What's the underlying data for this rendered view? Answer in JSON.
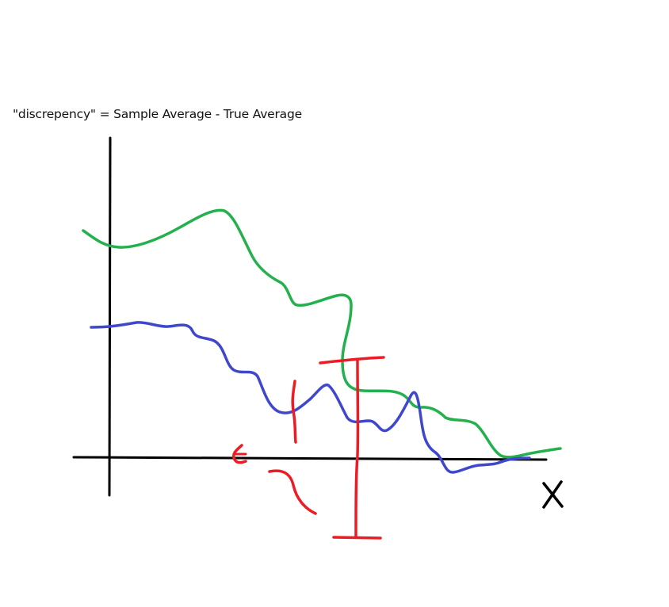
{
  "caption": "\"discrepency\" = Sample Average - True Average",
  "axis_label_x": "X",
  "colors": {
    "axes": "#000000",
    "green_curve": "#22b14c",
    "blue_curve": "#3f48cc",
    "red_marks": "#ed1c24"
  }
}
